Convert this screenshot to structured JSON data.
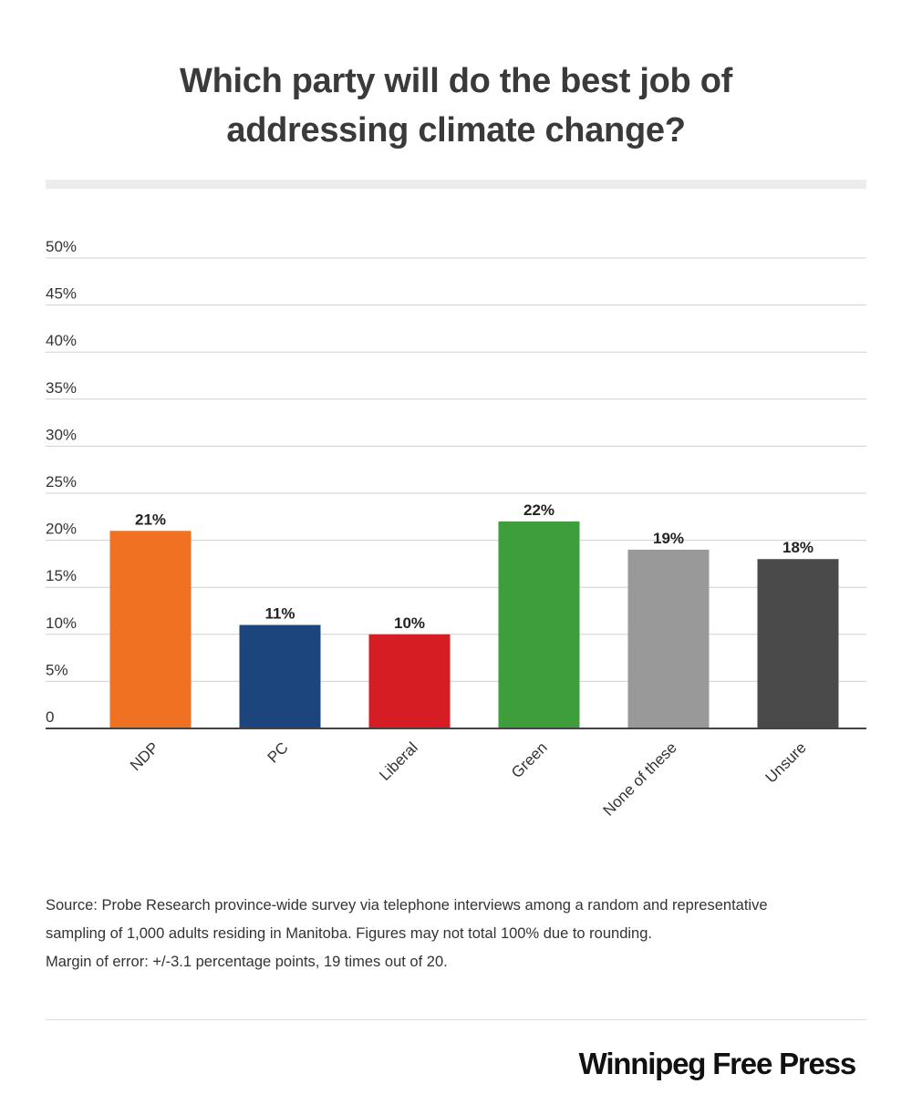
{
  "title_lines": [
    "Which party will do the best job of",
    "addressing climate change?"
  ],
  "chart_data": {
    "type": "bar",
    "categories": [
      "NDP",
      "PC",
      "Liberal",
      "Green",
      "None of these",
      "Unsure"
    ],
    "values": [
      21,
      11,
      10,
      22,
      19,
      18
    ],
    "value_labels": [
      "21%",
      "11%",
      "10%",
      "22%",
      "19%",
      "18%"
    ],
    "colors": [
      "#f07122",
      "#1c457e",
      "#d61d24",
      "#3d9e3b",
      "#999999",
      "#4a4a4a"
    ],
    "ylim": [
      0,
      50
    ],
    "yticks": [
      0,
      5,
      10,
      15,
      20,
      25,
      30,
      35,
      40,
      45,
      50
    ],
    "ytick_labels": [
      "0",
      "5%",
      "10%",
      "15%",
      "20%",
      "25%",
      "30%",
      "35%",
      "40%",
      "45%",
      "50%"
    ],
    "grid": true,
    "xlabel": "",
    "ylabel": ""
  },
  "source_lines": [
    "Source:  Probe Research province-wide survey via telephone interviews among a random and representative",
    "sampling of 1,000 adults residing in Manitoba. Figures may not total 100% due to rounding.",
    "Margin of error: +/-3.1 percentage points, 19 times out of 20."
  ],
  "brand": "Winnipeg Free Press"
}
